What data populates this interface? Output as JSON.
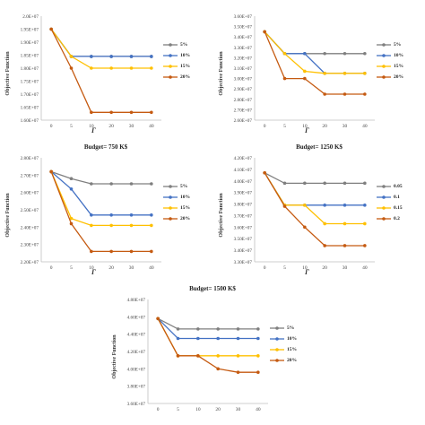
{
  "chart_data": [
    {
      "type": "line",
      "title": "",
      "xlabel": "Γ",
      "ylabel": "Objective Function",
      "categories": [
        "0",
        "5",
        "10",
        "20",
        "30",
        "40"
      ],
      "ylim": [
        16000000.0,
        20000000.0
      ],
      "yticks": [
        "1.60E+07",
        "1.65E+07",
        "1.70E+07",
        "1.75E+07",
        "1.80E+07",
        "1.85E+07",
        "1.90E+07",
        "1.95E+07",
        "2.0E+07"
      ],
      "legend": "right",
      "grid": false,
      "series": [
        {
          "name": "5%",
          "color": "#7f7f7f",
          "values": [
            19500000.0,
            18450000.0,
            18450000.0,
            18450000.0,
            18450000.0,
            18450000.0
          ]
        },
        {
          "name": "10%",
          "color": "#4472c4",
          "values": [
            19500000.0,
            18450000.0,
            18450000.0,
            18450000.0,
            18450000.0,
            18450000.0
          ]
        },
        {
          "name": "15%",
          "color": "#ffc000",
          "values": [
            19500000.0,
            18450000.0,
            18000000.0,
            18000000.0,
            18000000.0,
            18000000.0
          ]
        },
        {
          "name": "20%",
          "color": "#c55a11",
          "values": [
            19500000.0,
            18000000.0,
            16300000.0,
            16300000.0,
            16300000.0,
            16300000.0
          ]
        }
      ]
    },
    {
      "type": "line",
      "title": "",
      "xlabel": "Γ",
      "ylabel": "Objective Function",
      "categories": [
        "0",
        "5",
        "10",
        "20",
        "30",
        "40"
      ],
      "ylim": [
        26000000.0,
        36000000.0
      ],
      "yticks": [
        "2.60E+07",
        "2.70E+07",
        "2.80E+07",
        "2.90E+07",
        "3.00E+07",
        "3.10E+07",
        "3.20E+07",
        "3.30E+07",
        "3.40E+07",
        "3.50E+07",
        "3.60E+07"
      ],
      "legend": "right",
      "grid": false,
      "series": [
        {
          "name": "5%",
          "color": "#7f7f7f",
          "values": [
            34500000.0,
            32400000.0,
            32400000.0,
            32400000.0,
            32400000.0,
            32400000.0
          ]
        },
        {
          "name": "10%",
          "color": "#4472c4",
          "values": [
            34500000.0,
            32400000.0,
            32400000.0,
            30500000.0,
            30500000.0,
            30500000.0
          ]
        },
        {
          "name": "15%",
          "color": "#ffc000",
          "values": [
            34500000.0,
            32400000.0,
            30700000.0,
            30500000.0,
            30500000.0,
            30500000.0
          ]
        },
        {
          "name": "20%",
          "color": "#c55a11",
          "values": [
            34500000.0,
            30000000.0,
            30000000.0,
            28500000.0,
            28500000.0,
            28500000.0
          ]
        }
      ]
    },
    {
      "type": "line",
      "title": "Budget= 750 K$",
      "xlabel": "Γ",
      "ylabel": "Objective Function",
      "categories": [
        "0",
        "5",
        "10",
        "20",
        "30",
        "40"
      ],
      "ylim": [
        22000000.0,
        28000000.0
      ],
      "yticks": [
        "2.20E+07",
        "2.30E+07",
        "2.40E+07",
        "2.50E+07",
        "2.60E+07",
        "2.70E+07",
        "2.80E+07"
      ],
      "legend": "right",
      "grid": false,
      "series": [
        {
          "name": "5%",
          "color": "#7f7f7f",
          "values": [
            27200000.0,
            26800000.0,
            26500000.0,
            26500000.0,
            26500000.0,
            26500000.0
          ]
        },
        {
          "name": "10%",
          "color": "#4472c4",
          "values": [
            27200000.0,
            26200000.0,
            24700000.0,
            24700000.0,
            24700000.0,
            24700000.0
          ]
        },
        {
          "name": "15%",
          "color": "#ffc000",
          "values": [
            27200000.0,
            24500000.0,
            24100000.0,
            24100000.0,
            24100000.0,
            24100000.0
          ]
        },
        {
          "name": "20%",
          "color": "#c55a11",
          "values": [
            27200000.0,
            24200000.0,
            22600000.0,
            22600000.0,
            22600000.0,
            22600000.0
          ]
        }
      ]
    },
    {
      "type": "line",
      "title": "Budget= 1250 K$",
      "xlabel": "Γ",
      "ylabel": "Objective Function",
      "categories": [
        "0",
        "5",
        "10",
        "20",
        "30",
        "40"
      ],
      "ylim": [
        33000000.0,
        42000000.0
      ],
      "yticks": [
        "3.30E+07",
        "3.40E+07",
        "3.50E+07",
        "3.60E+07",
        "3.70E+07",
        "3.80E+07",
        "3.90E+07",
        "4.00E+07",
        "4.10E+07",
        "4.20E+07"
      ],
      "legend": "right",
      "grid": false,
      "series": [
        {
          "name": "0.05",
          "color": "#7f7f7f",
          "values": [
            40700000.0,
            39800000.0,
            39800000.0,
            39800000.0,
            39800000.0,
            39800000.0
          ]
        },
        {
          "name": "0.1",
          "color": "#4472c4",
          "values": [
            40700000.0,
            37900000.0,
            37900000.0,
            37900000.0,
            37900000.0,
            37900000.0
          ]
        },
        {
          "name": "0.15",
          "color": "#ffc000",
          "values": [
            40700000.0,
            37900000.0,
            37900000.0,
            36300000.0,
            36300000.0,
            36300000.0
          ]
        },
        {
          "name": "0.2",
          "color": "#c55a11",
          "values": [
            40700000.0,
            37800000.0,
            36000000.0,
            34400000.0,
            34400000.0,
            34400000.0
          ]
        }
      ]
    },
    {
      "type": "line",
      "title": "Budget= 1500 K$",
      "xlabel": "",
      "ylabel": "Objective Function",
      "categories": [
        "0",
        "5",
        "10",
        "20",
        "30",
        "40"
      ],
      "ylim": [
        36000000.0,
        48000000.0
      ],
      "yticks": [
        "3.60E+07",
        "3.80E+07",
        "4.00E+07",
        "4.20E+07",
        "4.40E+07",
        "4.60E+07",
        "4.80E+07"
      ],
      "legend": "right",
      "grid": false,
      "series": [
        {
          "name": "5%",
          "color": "#7f7f7f",
          "values": [
            45800000.0,
            44600000.0,
            44600000.0,
            44600000.0,
            44600000.0,
            44600000.0
          ]
        },
        {
          "name": "10%",
          "color": "#4472c4",
          "values": [
            45800000.0,
            43500000.0,
            43500000.0,
            43500000.0,
            43500000.0,
            43500000.0
          ]
        },
        {
          "name": "15%",
          "color": "#ffc000",
          "values": [
            45800000.0,
            41500000.0,
            41500000.0,
            41500000.0,
            41500000.0,
            41500000.0
          ]
        },
        {
          "name": "20%",
          "color": "#c55a11",
          "values": [
            45800000.0,
            41500000.0,
            41500000.0,
            40000000.0,
            39600000.0,
            39600000.0
          ]
        }
      ]
    }
  ]
}
